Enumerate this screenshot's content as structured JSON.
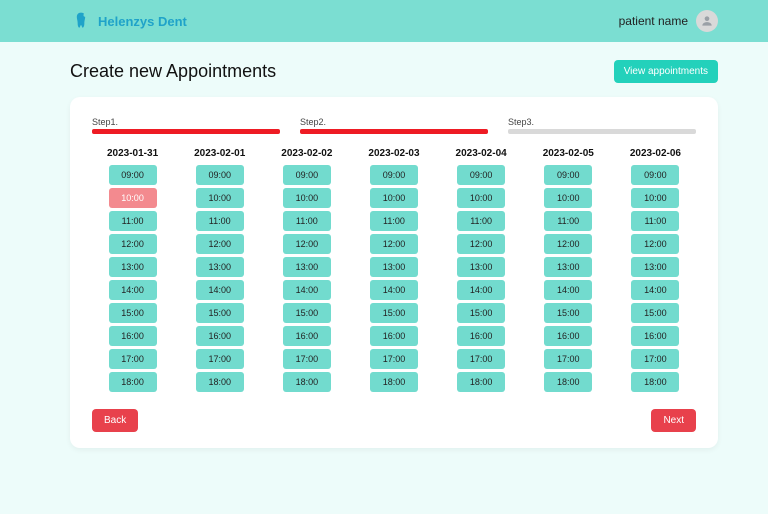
{
  "brand": {
    "name": "Helenzys Dent",
    "logo_color": "#1fa3c9"
  },
  "user": {
    "label": "patient name"
  },
  "page": {
    "title": "Create new Appointments",
    "view_button": "View appointments"
  },
  "steps": [
    {
      "label": "Step1.",
      "bar_color": "#ee1b24"
    },
    {
      "label": "Step2.",
      "bar_color": "#ee1b24"
    },
    {
      "label": "Step3.",
      "bar_color": "#d9d9d9"
    }
  ],
  "schedule": {
    "dates": [
      "2023-01-31",
      "2023-02-01",
      "2023-02-02",
      "2023-02-03",
      "2023-02-04",
      "2023-02-05",
      "2023-02-06"
    ],
    "times": [
      "09:00",
      "10:00",
      "11:00",
      "12:00",
      "13:00",
      "14:00",
      "15:00",
      "16:00",
      "17:00",
      "18:00"
    ],
    "selected": {
      "date_index": 0,
      "time_index": 1
    },
    "slot_bg": "#72dbce",
    "slot_selected_bg": "#f38a8f"
  },
  "buttons": {
    "back": "Back",
    "next": "Next",
    "action_bg": "#e8414c"
  }
}
